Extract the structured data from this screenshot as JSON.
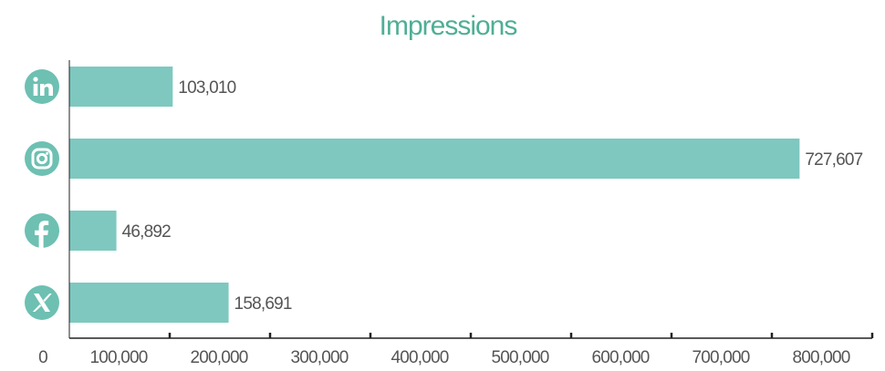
{
  "chart_data": {
    "type": "bar",
    "orientation": "horizontal",
    "title": "Impressions",
    "categories": [
      "LinkedIn",
      "Instagram",
      "Facebook",
      "X"
    ],
    "category_icons": [
      "linkedin-icon",
      "instagram-icon",
      "facebook-icon",
      "x-icon"
    ],
    "values": [
      103010,
      727607,
      46892,
      158691
    ],
    "value_labels": [
      "103,010",
      "727,607",
      "46,892",
      "158,691"
    ],
    "xlim": [
      0,
      800000
    ],
    "x_ticks": [
      0,
      100000,
      200000,
      300000,
      400000,
      500000,
      600000,
      700000,
      800000
    ],
    "x_tick_labels": [
      "0",
      "100,000",
      "200,000",
      "300,000",
      "400,000",
      "500,000",
      "600,000",
      "700,000",
      "800,000"
    ],
    "grid": false,
    "legend": "none",
    "colors": {
      "bar": "#7ec8bf",
      "title": "#4fae95",
      "icon": "#6dc0b2",
      "axis": "#222222",
      "text": "#555555"
    }
  }
}
